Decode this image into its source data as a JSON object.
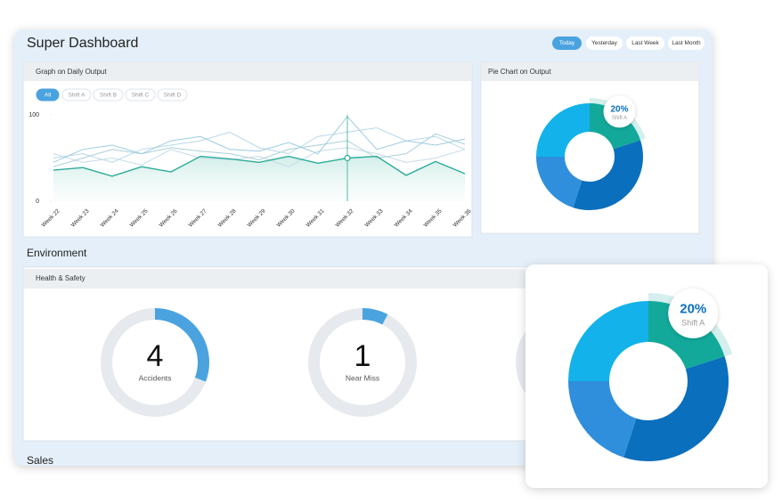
{
  "header": {
    "title": "Super Dashboard",
    "buttons": [
      "Today",
      "Yesterday",
      "Last Week",
      "Last Month"
    ]
  },
  "daily_output": {
    "title": "Graph on Daily Output",
    "chart_data": {
      "type": "line",
      "categories": [
        "Week 22",
        "Week 23",
        "Week 24",
        "Week 25",
        "Week 26",
        "Week 27",
        "Week 28",
        "Week 29",
        "Week 30",
        "Week 31",
        "Week 32",
        "Week 33",
        "Week 34",
        "Week 35",
        "Week 36"
      ],
      "series": [
        {
          "name": "All",
          "color": "#2bab97",
          "values": [
            36,
            39,
            29,
            40,
            34,
            52,
            49,
            45,
            52,
            44,
            50,
            52,
            30,
            46,
            32
          ]
        },
        {
          "name": "Shift A",
          "color": "#9ccbe0",
          "values": [
            45,
            60,
            65,
            55,
            70,
            75,
            60,
            58,
            68,
            55,
            98,
            60,
            70,
            65,
            72
          ]
        },
        {
          "name": "Shift B",
          "color": "#b8d8ea",
          "values": [
            50,
            55,
            45,
            60,
            65,
            70,
            80,
            62,
            55,
            75,
            80,
            85,
            70,
            75,
            60
          ]
        },
        {
          "name": "Shift C",
          "color": "#a9cfd8",
          "values": [
            40,
            50,
            60,
            55,
            62,
            58,
            55,
            48,
            60,
            65,
            70,
            50,
            55,
            78,
            66
          ]
        },
        {
          "name": "Shift D",
          "color": "#c5dbe8",
          "values": [
            55,
            45,
            50,
            42,
            60,
            50,
            48,
            52,
            40,
            58,
            62,
            55,
            45,
            50,
            60
          ]
        }
      ],
      "ylim": [
        0,
        100
      ],
      "yticks": [
        0,
        100
      ]
    }
  },
  "pie_output": {
    "title": "Pie Chart on Output",
    "chart_data": {
      "type": "pie",
      "categories": [
        "Shift A",
        null,
        null,
        null
      ],
      "values": [
        20,
        35,
        20,
        25
      ],
      "value_labels": [
        "20%",
        null,
        null,
        null
      ],
      "colors": [
        "#12a99a",
        "#0a6fbd",
        "#2f8fdc",
        "#13b2ea"
      ]
    }
  },
  "environment": {
    "title": "Environment",
    "panel_title": "Health & Safety",
    "gauges": {
      "max": 13,
      "items": [
        {
          "value": 4,
          "label": "Accidents"
        },
        {
          "value": 1,
          "label": "Near Miss"
        }
      ]
    }
  },
  "sales": {
    "title": "Sales"
  }
}
